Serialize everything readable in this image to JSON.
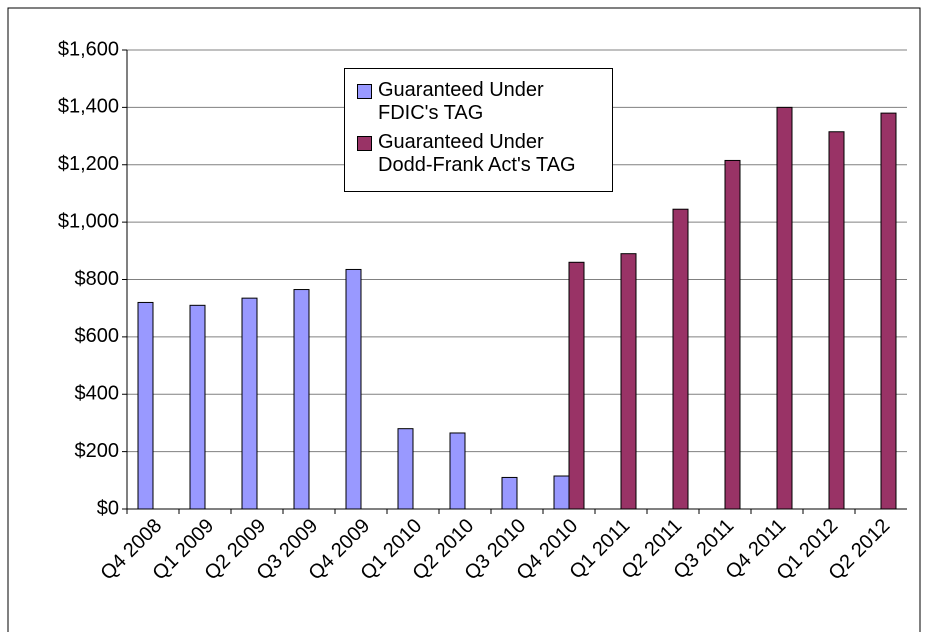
{
  "chart_data": {
    "type": "bar",
    "categories": [
      "Q4 2008",
      "Q1 2009",
      "Q2 2009",
      "Q3 2009",
      "Q4 2009",
      "Q1 2010",
      "Q2 2010",
      "Q3 2010",
      "Q4 2010",
      "Q1 2011",
      "Q2 2011",
      "Q3 2011",
      "Q4 2011",
      "Q1 2012",
      "Q2 2012"
    ],
    "series": [
      {
        "name": "Guaranteed Under FDIC's TAG",
        "color": "#9999ff",
        "values": [
          720,
          710,
          735,
          765,
          835,
          280,
          265,
          110,
          115,
          null,
          null,
          null,
          null,
          null,
          null
        ]
      },
      {
        "name": "Guaranteed Under Dodd-Frank Act's TAG",
        "color": "#993366",
        "values": [
          null,
          null,
          null,
          null,
          null,
          null,
          null,
          null,
          860,
          890,
          1045,
          1215,
          1400,
          1315,
          1380
        ]
      }
    ],
    "ylim": [
      0,
      1600
    ],
    "yticks": [
      {
        "value": 0,
        "label": "$0"
      },
      {
        "value": 200,
        "label": "$200"
      },
      {
        "value": 400,
        "label": "$400"
      },
      {
        "value": 600,
        "label": "$600"
      },
      {
        "value": 800,
        "label": "$800"
      },
      {
        "value": 1000,
        "label": "$1,000"
      },
      {
        "value": 1200,
        "label": "$1,200"
      },
      {
        "value": 1400,
        "label": "$1,400"
      },
      {
        "value": 1600,
        "label": "$1,600"
      }
    ],
    "grid": true,
    "legend": "top"
  }
}
